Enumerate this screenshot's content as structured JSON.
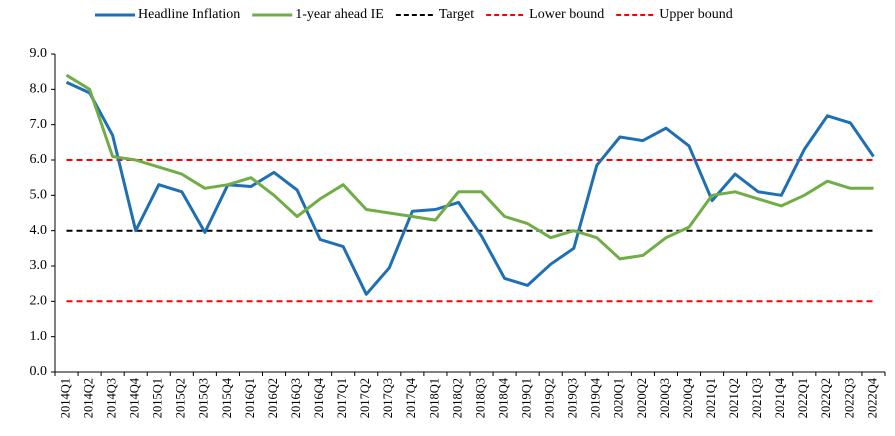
{
  "chart_data": {
    "type": "line",
    "categories": [
      "2014Q1",
      "2014Q2",
      "2014Q3",
      "2014Q4",
      "2015Q1",
      "2015Q2",
      "2015Q3",
      "2015Q4",
      "2016Q1",
      "2016Q2",
      "2016Q3",
      "2016Q4",
      "2017Q1",
      "2017Q2",
      "2017Q3",
      "2017Q4",
      "2018Q1",
      "2018Q2",
      "2018Q3",
      "2018Q4",
      "2019Q1",
      "2019Q2",
      "2019Q3",
      "2019Q4",
      "2020Q1",
      "2020Q2",
      "2020Q3",
      "2020Q4",
      "2021Q1",
      "2021Q2",
      "2021Q3",
      "2021Q4",
      "2022Q1",
      "2022Q2",
      "2022Q3",
      "2022Q4"
    ],
    "series": [
      {
        "name": "Headline Inflation",
        "color": "#1f6fb5",
        "style": "solid",
        "values": [
          8.2,
          7.9,
          6.7,
          4.0,
          5.3,
          5.1,
          3.95,
          5.3,
          5.25,
          5.65,
          5.15,
          3.75,
          3.55,
          2.2,
          2.95,
          4.55,
          4.6,
          4.8,
          3.85,
          2.65,
          2.45,
          3.05,
          3.5,
          5.85,
          6.65,
          6.55,
          6.9,
          6.4,
          4.85,
          5.6,
          5.1,
          5.0,
          6.3,
          7.25,
          7.05,
          6.1
        ]
      },
      {
        "name": "1-year ahead IE",
        "color": "#70ad47",
        "style": "solid",
        "values": [
          8.4,
          8.0,
          6.1,
          6.0,
          5.8,
          5.6,
          5.2,
          5.3,
          5.5,
          5.0,
          4.4,
          4.9,
          5.3,
          4.6,
          4.5,
          4.4,
          4.3,
          5.1,
          5.1,
          4.4,
          4.2,
          3.8,
          4.0,
          3.8,
          3.2,
          3.3,
          3.8,
          4.1,
          5.0,
          5.1,
          4.9,
          4.7,
          5.0,
          5.4,
          5.2,
          5.2
        ]
      },
      {
        "name": "Target",
        "color": "#000000",
        "style": "dashed",
        "values": [
          4,
          4,
          4,
          4,
          4,
          4,
          4,
          4,
          4,
          4,
          4,
          4,
          4,
          4,
          4,
          4,
          4,
          4,
          4,
          4,
          4,
          4,
          4,
          4,
          4,
          4,
          4,
          4,
          4,
          4,
          4,
          4,
          4,
          4,
          4,
          4
        ]
      },
      {
        "name": "Lower bound",
        "color": "#ff0000",
        "style": "dashed",
        "values": [
          2,
          2,
          2,
          2,
          2,
          2,
          2,
          2,
          2,
          2,
          2,
          2,
          2,
          2,
          2,
          2,
          2,
          2,
          2,
          2,
          2,
          2,
          2,
          2,
          2,
          2,
          2,
          2,
          2,
          2,
          2,
          2,
          2,
          2,
          2,
          2
        ]
      },
      {
        "name": "Upper bound",
        "color": "#ff0000",
        "style": "dashed",
        "values": [
          6,
          6,
          6,
          6,
          6,
          6,
          6,
          6,
          6,
          6,
          6,
          6,
          6,
          6,
          6,
          6,
          6,
          6,
          6,
          6,
          6,
          6,
          6,
          6,
          6,
          6,
          6,
          6,
          6,
          6,
          6,
          6,
          6,
          6,
          6,
          6
        ]
      }
    ],
    "ylim": [
      0,
      9
    ],
    "yticks": [
      {
        "value": 0,
        "label": "0.0"
      },
      {
        "value": 1,
        "label": "1.0"
      },
      {
        "value": 2,
        "label": "2.0"
      },
      {
        "value": 3,
        "label": "3.0"
      },
      {
        "value": 4,
        "label": "4.0"
      },
      {
        "value": 5,
        "label": "5.0"
      },
      {
        "value": 6,
        "label": "6.0"
      },
      {
        "value": 7,
        "label": "7.0"
      },
      {
        "value": 8,
        "label": "8.0"
      },
      {
        "value": 9,
        "label": "9.0"
      }
    ],
    "grid": false,
    "legend": "top"
  }
}
